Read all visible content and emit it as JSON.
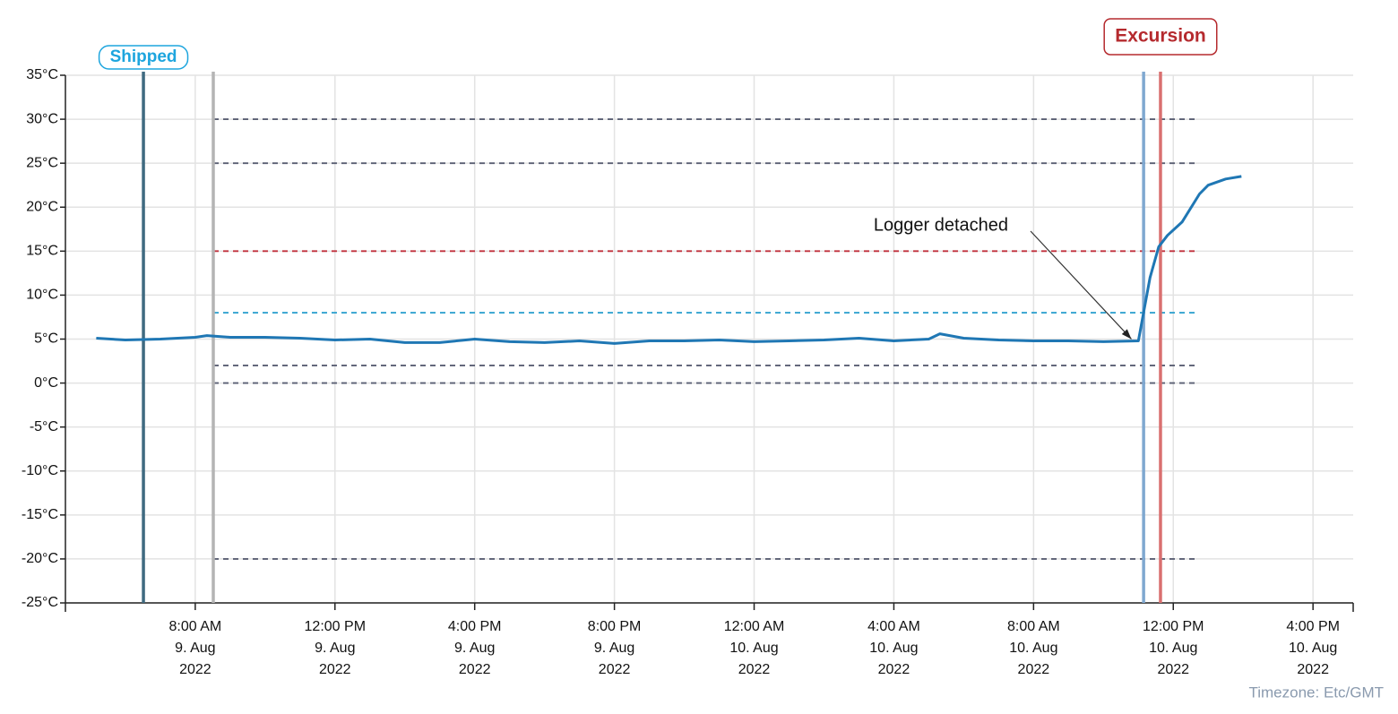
{
  "chart_data": {
    "type": "line",
    "color": "#1f77b4",
    "x": [
      "2022-08-09T05:10",
      "2022-08-09T06:00",
      "2022-08-09T07:00",
      "2022-08-09T08:00",
      "2022-08-09T08:20",
      "2022-08-09T09:00",
      "2022-08-09T10:00",
      "2022-08-09T11:00",
      "2022-08-09T12:00",
      "2022-08-09T13:00",
      "2022-08-09T14:00",
      "2022-08-09T15:00",
      "2022-08-09T16:00",
      "2022-08-09T17:00",
      "2022-08-09T18:00",
      "2022-08-09T19:00",
      "2022-08-09T20:00",
      "2022-08-09T21:00",
      "2022-08-09T22:00",
      "2022-08-09T23:00",
      "2022-08-10T00:00",
      "2022-08-10T01:00",
      "2022-08-10T02:00",
      "2022-08-10T03:00",
      "2022-08-10T04:00",
      "2022-08-10T05:00",
      "2022-08-10T05:19",
      "2022-08-10T06:00",
      "2022-08-10T07:00",
      "2022-08-10T08:00",
      "2022-08-10T09:00",
      "2022-08-10T10:00",
      "2022-08-10T11:00",
      "2022-08-10T11:20",
      "2022-08-10T11:35",
      "2022-08-10T11:50",
      "2022-08-10T12:15",
      "2022-08-10T12:45",
      "2022-08-10T13:00",
      "2022-08-10T13:30",
      "2022-08-10T13:57"
    ],
    "values": [
      5.1,
      4.9,
      5.0,
      5.2,
      5.4,
      5.2,
      5.2,
      5.1,
      4.9,
      5.0,
      4.6,
      4.6,
      5.0,
      4.7,
      4.6,
      4.8,
      4.5,
      4.8,
      4.8,
      4.9,
      4.7,
      4.8,
      4.9,
      5.1,
      4.8,
      5.0,
      5.6,
      5.1,
      4.9,
      4.8,
      4.8,
      4.7,
      4.8,
      12,
      15.5,
      16.8,
      18.3,
      21.5,
      22.5,
      23.2,
      23.5
    ],
    "xlim": [
      "2022-08-09T04:17",
      "2022-08-10T17:09"
    ],
    "xticks": [
      {
        "value": "2022-08-09T08:00",
        "label": [
          "8:00 AM",
          "9. Aug",
          "2022"
        ]
      },
      {
        "value": "2022-08-09T12:00",
        "label": [
          "12:00 PM",
          "9. Aug",
          "2022"
        ]
      },
      {
        "value": "2022-08-09T16:00",
        "label": [
          "4:00 PM",
          "9. Aug",
          "2022"
        ]
      },
      {
        "value": "2022-08-09T20:00",
        "label": [
          "8:00 PM",
          "9. Aug",
          "2022"
        ]
      },
      {
        "value": "2022-08-10T00:00",
        "label": [
          "12:00 AM",
          "10. Aug",
          "2022"
        ]
      },
      {
        "value": "2022-08-10T04:00",
        "label": [
          "4:00 AM",
          "10. Aug",
          "2022"
        ]
      },
      {
        "value": "2022-08-10T08:00",
        "label": [
          "8:00 AM",
          "10. Aug",
          "2022"
        ]
      },
      {
        "value": "2022-08-10T12:00",
        "label": [
          "12:00 PM",
          "10. Aug",
          "2022"
        ]
      },
      {
        "value": "2022-08-10T16:00",
        "label": [
          "4:00 PM",
          "10. Aug",
          "2022"
        ]
      }
    ],
    "ylim": [
      -25,
      35
    ],
    "yticks": [
      {
        "value": 35,
        "label": "35°C"
      },
      {
        "value": 30,
        "label": "30°C"
      },
      {
        "value": 25,
        "label": "25°C"
      },
      {
        "value": 20,
        "label": "20°C"
      },
      {
        "value": 15,
        "label": "15°C"
      },
      {
        "value": 10,
        "label": "10°C"
      },
      {
        "value": 5,
        "label": "5°C"
      },
      {
        "value": 0,
        "label": "0°C"
      },
      {
        "value": -5,
        "label": "-5°C"
      },
      {
        "value": -10,
        "label": "-10°C"
      },
      {
        "value": -15,
        "label": "-15°C"
      },
      {
        "value": -20,
        "label": "-20°C"
      },
      {
        "value": -25,
        "label": "-25°C"
      }
    ],
    "grid": true,
    "reference_range": [
      "2022-08-09T08:31",
      "2022-08-10T12:40"
    ],
    "reference_lines": [
      {
        "value": 30,
        "color": "#5a5f73"
      },
      {
        "value": 25,
        "color": "#5a5f73"
      },
      {
        "value": 15,
        "color": "#c0303c"
      },
      {
        "value": 8,
        "color": "#33a3d0"
      },
      {
        "value": 2,
        "color": "#5a5f73"
      },
      {
        "value": 0,
        "color": "#5a5f73"
      },
      {
        "value": -20,
        "color": "#5a5f73"
      }
    ],
    "markers": [
      {
        "x": "2022-08-09T06:31",
        "color": "#3f6a80",
        "label": "Shipped",
        "label_color": "#1da5de"
      },
      {
        "x": "2022-08-09T08:31",
        "color": "#b4b4b4"
      },
      {
        "x": "2022-08-10T11:09",
        "color": "#7fa8d0"
      },
      {
        "x": "2022-08-10T11:38",
        "color": "#d97070",
        "label": "Excursion",
        "label_color": "#b52a2e"
      }
    ],
    "annotation": {
      "text": "Logger detached",
      "x": "2022-08-10T10:48",
      "y": 4.8
    },
    "footnote": "Timezone: Etc/GMT"
  }
}
